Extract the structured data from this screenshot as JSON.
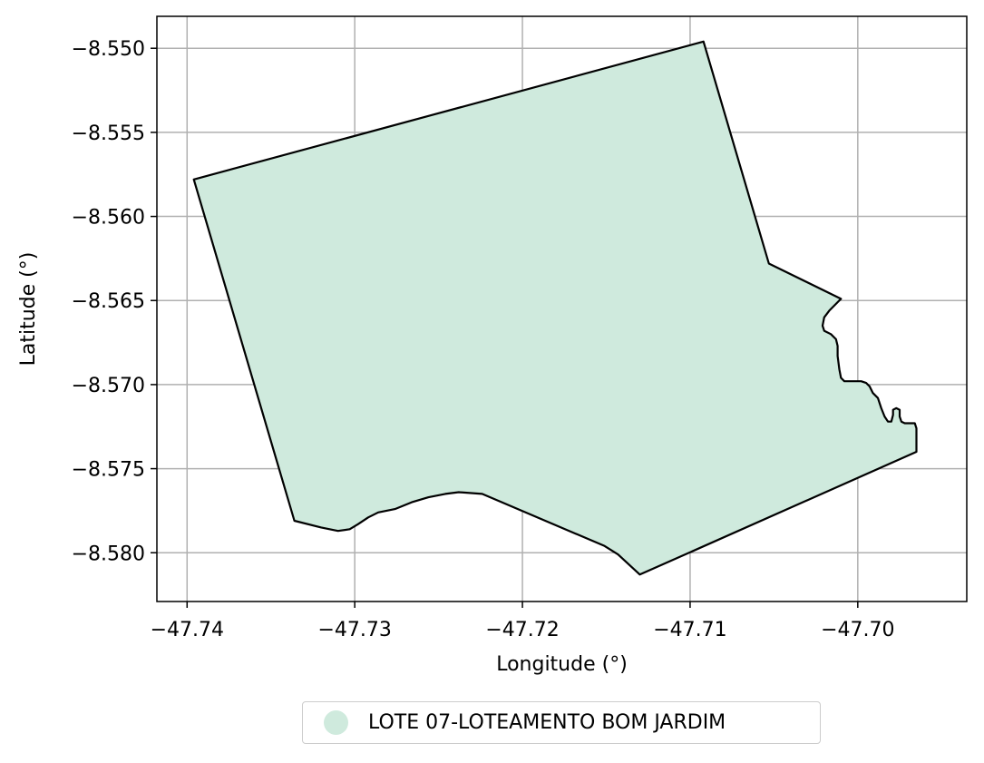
{
  "chart_data": {
    "type": "map",
    "xlabel": "Longitude (°)",
    "ylabel": "Latitude (°)",
    "xlim": [
      -47.7418,
      -47.6935
    ],
    "ylim": [
      -8.5829,
      -8.5481
    ],
    "xticks": [
      -47.74,
      -47.73,
      -47.72,
      -47.71,
      -47.7
    ],
    "xtick_labels": [
      "−47.74",
      "−47.73",
      "−47.72",
      "−47.71",
      "−47.70"
    ],
    "yticks": [
      -8.55,
      -8.555,
      -8.56,
      -8.565,
      -8.57,
      -8.575,
      -8.58
    ],
    "ytick_labels": [
      "−8.550",
      "−8.555",
      "−8.560",
      "−8.565",
      "−8.570",
      "−8.575",
      "−8.580"
    ],
    "grid": true,
    "legend_position": "bottom-center",
    "series": [
      {
        "name": "LOTE 07-LOTEAMENTO BOM JARDIM",
        "fill": "#cfeadd",
        "edge": "#000000",
        "polygon": [
          [
            -47.7396,
            -8.5578
          ],
          [
            -47.7092,
            -8.5496
          ],
          [
            -47.7053,
            -8.5628
          ],
          [
            -47.701,
            -8.5649
          ],
          [
            -47.7017,
            -8.5656
          ],
          [
            -47.702,
            -8.566
          ],
          [
            -47.7021,
            -8.5665
          ],
          [
            -47.702,
            -8.5668
          ],
          [
            -47.7016,
            -8.567
          ],
          [
            -47.7013,
            -8.5673
          ],
          [
            -47.7012,
            -8.5677
          ],
          [
            -47.7012,
            -8.5683
          ],
          [
            -47.7011,
            -8.5691
          ],
          [
            -47.701,
            -8.5696
          ],
          [
            -47.7008,
            -8.5698
          ],
          [
            -47.7003,
            -8.5698
          ],
          [
            -47.6998,
            -8.5698
          ],
          [
            -47.6995,
            -8.5699
          ],
          [
            -47.6993,
            -8.5701
          ],
          [
            -47.6991,
            -8.5705
          ],
          [
            -47.6988,
            -8.5708
          ],
          [
            -47.6986,
            -8.5714
          ],
          [
            -47.6984,
            -8.5719
          ],
          [
            -47.6982,
            -8.5722
          ],
          [
            -47.698,
            -8.5722
          ],
          [
            -47.6979,
            -8.5718
          ],
          [
            -47.6979,
            -8.5715
          ],
          [
            -47.6977,
            -8.5714
          ],
          [
            -47.6975,
            -8.5715
          ],
          [
            -47.6975,
            -8.5719
          ],
          [
            -47.6974,
            -8.5722
          ],
          [
            -47.6972,
            -8.5723
          ],
          [
            -47.6968,
            -8.5723
          ],
          [
            -47.6966,
            -8.5723
          ],
          [
            -47.6965,
            -8.5726
          ],
          [
            -47.6965,
            -8.573
          ],
          [
            -47.6965,
            -8.574
          ],
          [
            -47.713,
            -8.5813
          ],
          [
            -47.7143,
            -8.5801
          ],
          [
            -47.7151,
            -8.5796
          ],
          [
            -47.7224,
            -8.5765
          ],
          [
            -47.7238,
            -8.5764
          ],
          [
            -47.7246,
            -8.5765
          ],
          [
            -47.7256,
            -8.5767
          ],
          [
            -47.7266,
            -8.577
          ],
          [
            -47.7276,
            -8.5774
          ],
          [
            -47.7286,
            -8.5776
          ],
          [
            -47.7292,
            -8.5779
          ],
          [
            -47.7298,
            -8.5783
          ],
          [
            -47.7303,
            -8.5786
          ],
          [
            -47.731,
            -8.5787
          ],
          [
            -47.732,
            -8.5785
          ],
          [
            -47.7336,
            -8.5781
          ]
        ]
      }
    ]
  },
  "legend": {
    "label": "LOTE 07-LOTEAMENTO BOM JARDIM",
    "color": "#cfeadd"
  }
}
